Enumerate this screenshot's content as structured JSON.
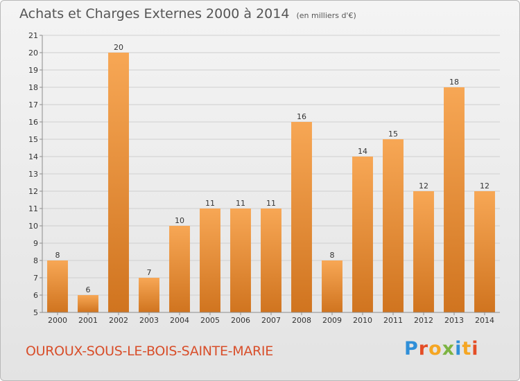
{
  "header": {
    "title": "Achats et Charges Externes 2000 à 2014",
    "unit": "(en milliers d'€)"
  },
  "footer": {
    "commune": "OUROUX-SOUS-LE-BOIS-SAINTE-MARIE",
    "logo_text": "Proxiti",
    "logo_letters": [
      {
        "ch": "P",
        "color": "#2f8fd8"
      },
      {
        "ch": "r",
        "color": "#e44d26"
      },
      {
        "ch": "o",
        "color": "#f5a623"
      },
      {
        "ch": "x",
        "color": "#7cb342"
      },
      {
        "ch": "i",
        "color": "#2f8fd8"
      },
      {
        "ch": "t",
        "color": "#f5a623"
      },
      {
        "ch": "i",
        "color": "#e44d26"
      }
    ]
  },
  "colors": {
    "bar_light": "#f7a755",
    "bar_dark": "#d0741f",
    "grid": "#cfcfcf",
    "axis": "#8c8c8c",
    "text": "#333333",
    "commune": "#d84e2a"
  },
  "chart_data": {
    "type": "bar",
    "title": "Achats et Charges Externes 2000 à 2014",
    "subtitle": "(en milliers d'€)",
    "categories": [
      "2000",
      "2001",
      "2002",
      "2003",
      "2004",
      "2005",
      "2006",
      "2007",
      "2008",
      "2009",
      "2010",
      "2011",
      "2012",
      "2013",
      "2014"
    ],
    "values": [
      8,
      6,
      20,
      7,
      10,
      11,
      11,
      11,
      16,
      8,
      14,
      15,
      12,
      18,
      12
    ],
    "ylim": [
      5,
      21
    ],
    "yticks": [
      5,
      6,
      7,
      8,
      9,
      10,
      11,
      12,
      13,
      14,
      15,
      16,
      17,
      18,
      19,
      20,
      21
    ],
    "grid": true,
    "data_labels": true
  }
}
